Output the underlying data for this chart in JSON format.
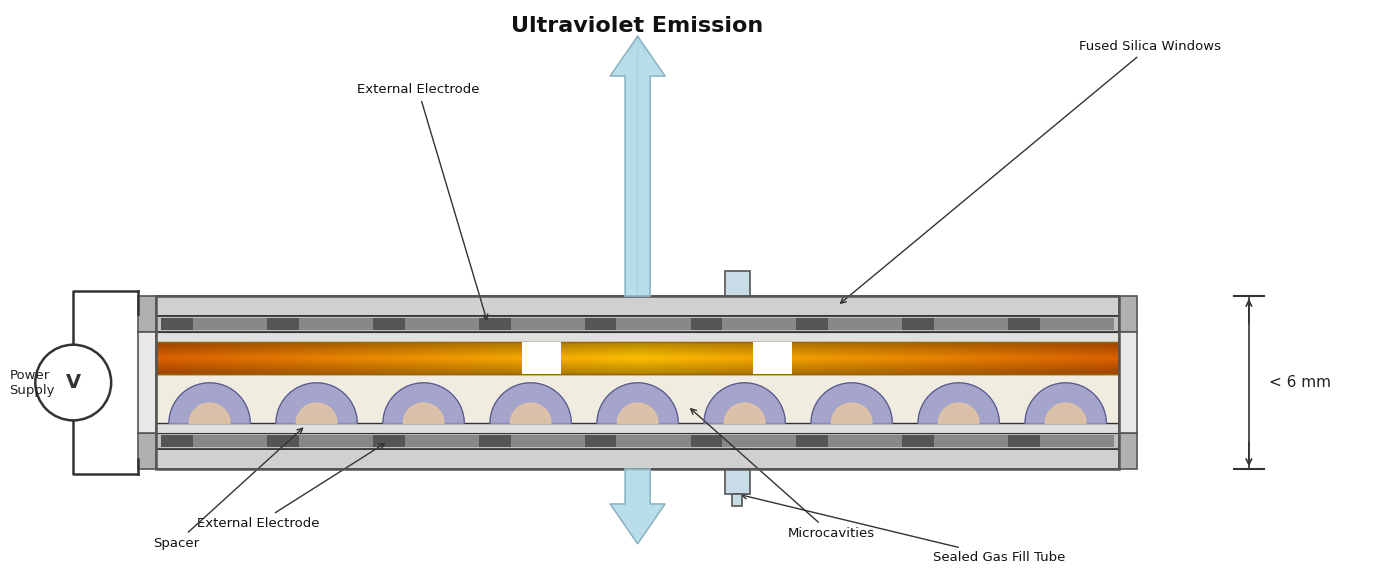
{
  "bg_color": "#ffffff",
  "title": "Ultraviolet Emission",
  "title_fontsize": 16,
  "title_fontweight": "bold",
  "labels": {
    "external_electrode_top": "External Electrode",
    "external_electrode_bot": "External Electrode",
    "spacer": "Spacer",
    "microcavities": "Microcavities",
    "fused_silica": "Fused Silica Windows",
    "sealed_gas": "Sealed Gas Fill Tube",
    "power_supply": "Power\nSupply",
    "dim_label": "< 6 mm"
  },
  "colors": {
    "fused_silica": "#d8d8d8",
    "electrode_dark": "#888888",
    "electrode_strip": "#555555",
    "spacer_inner": "#e8e8e8",
    "cavity_blue": "#9090c0",
    "cavity_tan": "#e8c8a0",
    "plasma_orange": "#e06000",
    "plasma_yellow": "#f0c000",
    "arrow_uv": "#add8e6",
    "outline": "#333333",
    "wire": "#333333",
    "dim_line": "#333333"
  }
}
